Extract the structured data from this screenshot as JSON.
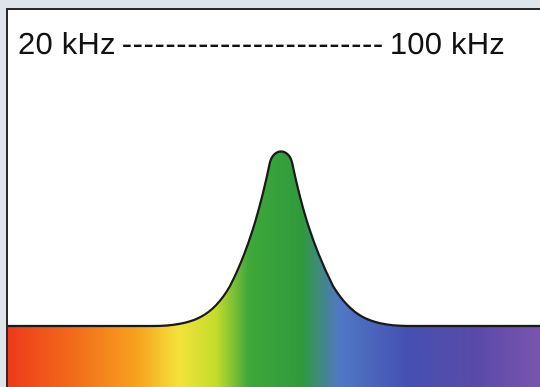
{
  "range": {
    "low": "20 kHz",
    "dashes": "------------------------",
    "high": "100 kHz"
  },
  "colors": {
    "spectrum": [
      "#ee3a1c",
      "#f26a1a",
      "#f7a11e",
      "#f4e23a",
      "#c4dc2c",
      "#3fa83a",
      "#2f9a3c",
      "#4f78c4",
      "#4550b2",
      "#5b4aa8",
      "#7a55b0"
    ],
    "peak": "#3a9a3a",
    "outline": "#1a1a1a"
  }
}
